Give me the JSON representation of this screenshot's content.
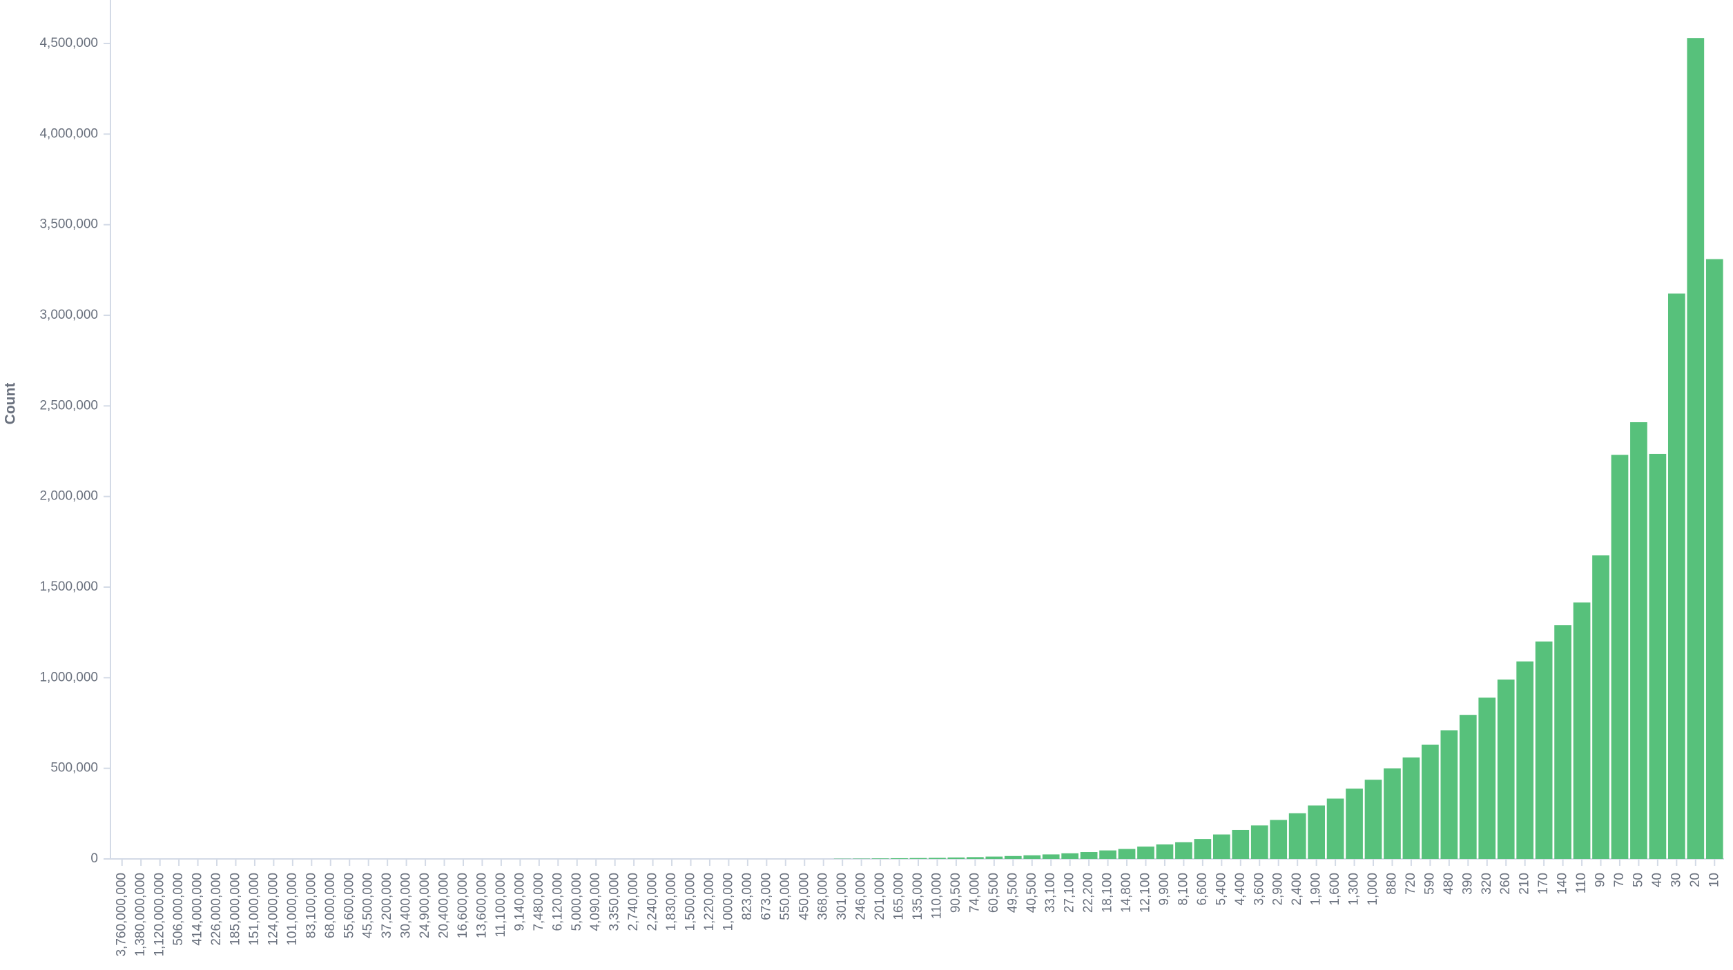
{
  "chart_data": {
    "type": "bar",
    "y_label": "Count",
    "color": "#57c17b",
    "categories": [
      "3,760,000,000",
      "1,380,000,000",
      "1,120,000,000",
      "506,000,000",
      "414,000,000",
      "226,000,000",
      "185,000,000",
      "151,000,000",
      "124,000,000",
      "101,000,000",
      "83,100,000",
      "68,000,000",
      "55,600,000",
      "45,500,000",
      "37,200,000",
      "30,400,000",
      "24,900,000",
      "20,400,000",
      "16,600,000",
      "13,600,000",
      "11,100,000",
      "9,140,000",
      "7,480,000",
      "6,120,000",
      "5,000,000",
      "4,090,000",
      "3,350,000",
      "2,740,000",
      "2,240,000",
      "1,830,000",
      "1,500,000",
      "1,220,000",
      "1,000,000",
      "823,000",
      "673,000",
      "550,000",
      "450,000",
      "368,000",
      "301,000",
      "246,000",
      "201,000",
      "165,000",
      "135,000",
      "110,000",
      "90,500",
      "74,000",
      "60,500",
      "49,500",
      "40,500",
      "33,100",
      "27,100",
      "22,200",
      "18,100",
      "14,800",
      "12,100",
      "9,900",
      "8,100",
      "6,600",
      "5,400",
      "4,400",
      "3,600",
      "2,900",
      "2,400",
      "1,900",
      "1,600",
      "1,300",
      "1,000",
      "880",
      "720",
      "590",
      "480",
      "390",
      "320",
      "260",
      "210",
      "170",
      "140",
      "110",
      "90",
      "70",
      "50",
      "40",
      "30",
      "20",
      "10"
    ],
    "values": [
      0,
      0,
      0,
      0,
      0,
      0,
      0,
      0,
      0,
      0,
      0,
      0,
      0,
      0,
      0,
      0,
      0,
      0,
      0,
      0,
      0,
      0,
      0,
      0,
      0,
      0,
      0,
      0,
      0,
      0,
      0,
      0,
      0,
      0,
      0,
      0,
      0,
      0,
      1500,
      2000,
      3000,
      4000,
      5000,
      6000,
      8000,
      10000,
      13000,
      16000,
      20000,
      25000,
      31000,
      38000,
      47000,
      55000,
      68000,
      80000,
      92000,
      110000,
      135000,
      160000,
      185000,
      215000,
      252000,
      295000,
      333000,
      388000,
      437000,
      500000,
      560000,
      630000,
      710000,
      795000,
      890000,
      990000,
      1090000,
      1200000,
      1290000,
      1415000,
      1675000,
      2230000,
      2410000,
      2235000,
      3120000,
      4530000,
      3310000
    ],
    "ylim": [
      0,
      4740000
    ],
    "yticks": [
      {
        "value": 0,
        "label": "0"
      },
      {
        "value": 500000,
        "label": "500,000"
      },
      {
        "value": 1000000,
        "label": "1,000,000"
      },
      {
        "value": 1500000,
        "label": "1,500,000"
      },
      {
        "value": 2000000,
        "label": "2,000,000"
      },
      {
        "value": 2500000,
        "label": "2,500,000"
      },
      {
        "value": 3000000,
        "label": "3,000,000"
      },
      {
        "value": 3500000,
        "label": "3,500,000"
      },
      {
        "value": 4000000,
        "label": "4,000,000"
      },
      {
        "value": 4500000,
        "label": "4,500,000"
      }
    ]
  }
}
